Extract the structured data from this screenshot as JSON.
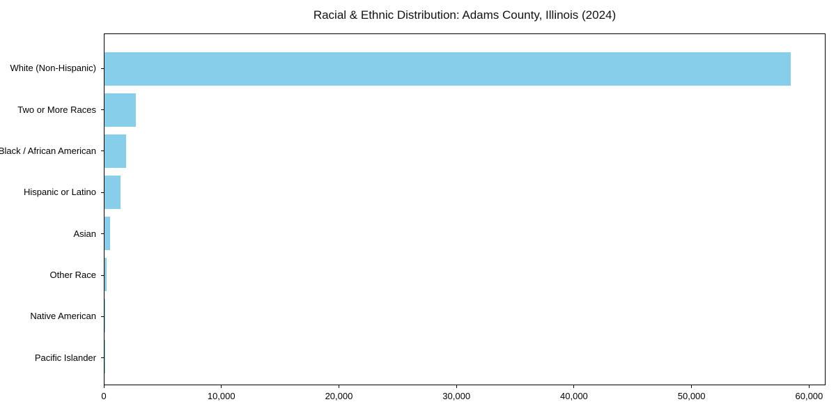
{
  "title": "Racial & Ethnic Distribution: Adams County, Illinois (2024)",
  "chart_data": {
    "type": "bar",
    "orientation": "horizontal",
    "title": "Racial & Ethnic Distribution: Adams County, Illinois (2024)",
    "xlabel": "",
    "ylabel": "",
    "categories": [
      "White (Non-Hispanic)",
      "Two or More Races",
      "Black / African American",
      "Hispanic or Latino",
      "Asian",
      "Other Race",
      "Native American",
      "Pacific Islander"
    ],
    "values": [
      58500,
      2670,
      1820,
      1360,
      480,
      170,
      60,
      20
    ],
    "xlim": [
      0,
      61400
    ],
    "x_ticks": [
      {
        "value": 0,
        "label": "0"
      },
      {
        "value": 10000,
        "label": "10,000"
      },
      {
        "value": 20000,
        "label": "20,000"
      },
      {
        "value": 30000,
        "label": "30,000"
      },
      {
        "value": 40000,
        "label": "40,000"
      },
      {
        "value": 50000,
        "label": "50,000"
      },
      {
        "value": 60000,
        "label": "60,000"
      }
    ],
    "bar_color": "#87CEEB",
    "background_color": "#ffffff",
    "spine_color": "#000000",
    "grid": false,
    "legend": null
  }
}
